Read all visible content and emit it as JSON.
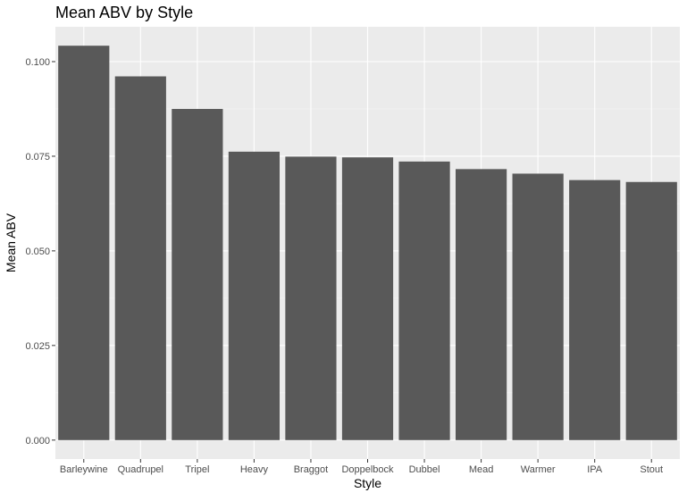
{
  "chart_data": {
    "type": "bar",
    "title": "Mean ABV by Style",
    "xlabel": "Style",
    "ylabel": "Mean ABV",
    "categories": [
      "Barleywine",
      "Quadrupel",
      "Tripel",
      "Heavy",
      "Braggot",
      "Doppelbock",
      "Dubbel",
      "Mead",
      "Warmer",
      "IPA",
      "Stout"
    ],
    "values": [
      0.1042,
      0.0961,
      0.0875,
      0.0762,
      0.0749,
      0.0747,
      0.0736,
      0.0716,
      0.0704,
      0.0687,
      0.0682
    ],
    "yticks": [
      0,
      0.025,
      0.05,
      0.075,
      0.1
    ],
    "ytick_labels": [
      "0.000",
      "0.025",
      "0.050",
      "0.075",
      "0.100"
    ],
    "ylim": [
      -0.005,
      0.1092
    ],
    "grid": true,
    "colors": {
      "bar": "#595959",
      "panel": "#ebebeb",
      "grid_major": "#ffffff",
      "grid_minor": "#f5f5f5",
      "tick": "#333333"
    }
  }
}
